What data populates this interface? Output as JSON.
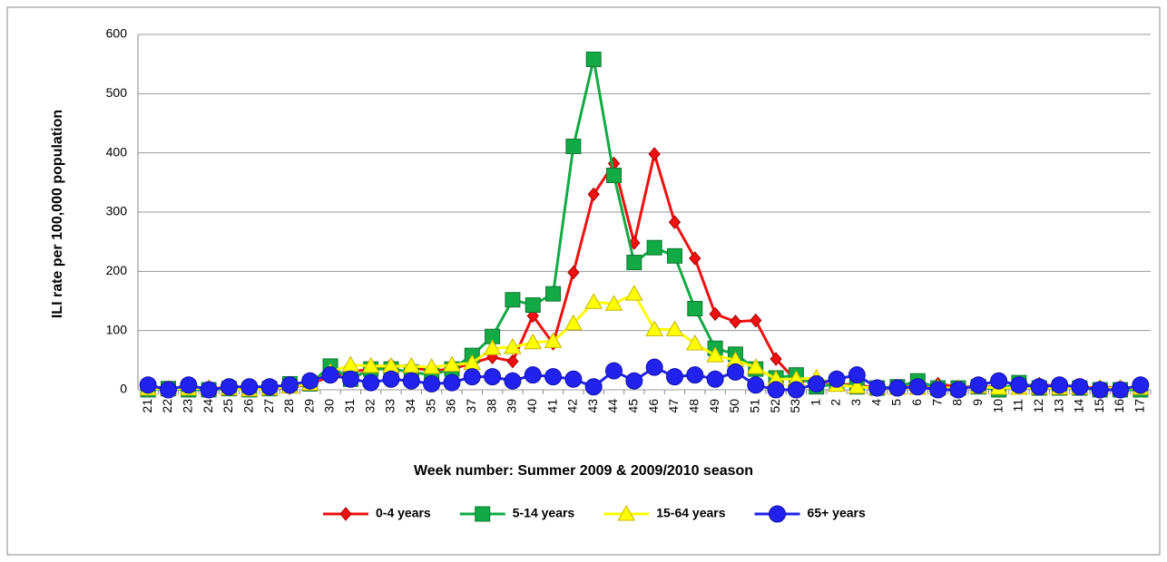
{
  "chart_data": {
    "type": "line",
    "y_label": "ILI rate per 100,000 population",
    "x_label": "Week number: Summer 2009 & 2009/2010 season",
    "categories": [
      "21",
      "22",
      "23",
      "24",
      "25",
      "26",
      "27",
      "28",
      "29",
      "30",
      "31",
      "32",
      "33",
      "34",
      "35",
      "36",
      "37",
      "38",
      "39",
      "40",
      "41",
      "42",
      "43",
      "44",
      "45",
      "46",
      "47",
      "48",
      "49",
      "50",
      "51",
      "52",
      "53",
      "1",
      "2",
      "3",
      "4",
      "5",
      "6",
      "7",
      "8",
      "9",
      "10",
      "11",
      "12",
      "13",
      "14",
      "15",
      "16",
      "17"
    ],
    "series": [
      {
        "name": "0-4 years",
        "color": "#ee1111",
        "marker": "diamond",
        "values": [
          5,
          3,
          2,
          3,
          3,
          2,
          3,
          3,
          10,
          22,
          30,
          35,
          42,
          38,
          32,
          35,
          45,
          55,
          48,
          125,
          78,
          198,
          330,
          382,
          248,
          398,
          283,
          222,
          128,
          115,
          117,
          52,
          15,
          15,
          10,
          8,
          3,
          5,
          5,
          10,
          5,
          5,
          5,
          5,
          10,
          5,
          3,
          5,
          3,
          3
        ]
      },
      {
        "name": "5-14 years",
        "color": "#11aa44",
        "marker": "square",
        "values": [
          0,
          2,
          0,
          0,
          2,
          0,
          2,
          10,
          10,
          40,
          18,
          35,
          35,
          30,
          25,
          35,
          58,
          90,
          152,
          143,
          162,
          411,
          558,
          362,
          215,
          240,
          226,
          137,
          70,
          60,
          35,
          20,
          25,
          5,
          10,
          5,
          3,
          5,
          15,
          3,
          3,
          5,
          0,
          12,
          3,
          3,
          3,
          0,
          0,
          0
        ]
      },
      {
        "name": "15-64 years",
        "color": "#ffff00",
        "marker": "triangle",
        "values": [
          2,
          2,
          2,
          3,
          2,
          0,
          2,
          5,
          10,
          30,
          42,
          40,
          40,
          40,
          38,
          42,
          45,
          70,
          72,
          80,
          82,
          112,
          148,
          145,
          162,
          102,
          102,
          78,
          58,
          50,
          38,
          18,
          18,
          20,
          8,
          5,
          3,
          3,
          3,
          3,
          3,
          5,
          3,
          3,
          3,
          3,
          3,
          3,
          3,
          3
        ]
      },
      {
        "name": "65+ years",
        "color": "#2222ee",
        "marker": "circle",
        "values": [
          8,
          0,
          8,
          0,
          5,
          5,
          5,
          8,
          15,
          25,
          18,
          12,
          18,
          15,
          10,
          12,
          22,
          22,
          15,
          25,
          22,
          18,
          5,
          32,
          15,
          38,
          22,
          25,
          18,
          30,
          8,
          0,
          0,
          10,
          18,
          25,
          3,
          3,
          5,
          0,
          0,
          8,
          15,
          8,
          5,
          8,
          5,
          0,
          0,
          8
        ]
      }
    ],
    "ylim": [
      0,
      600
    ],
    "yticks": [
      0,
      100,
      200,
      300,
      400,
      500,
      600
    ],
    "grid": true,
    "legend": "bottom"
  }
}
